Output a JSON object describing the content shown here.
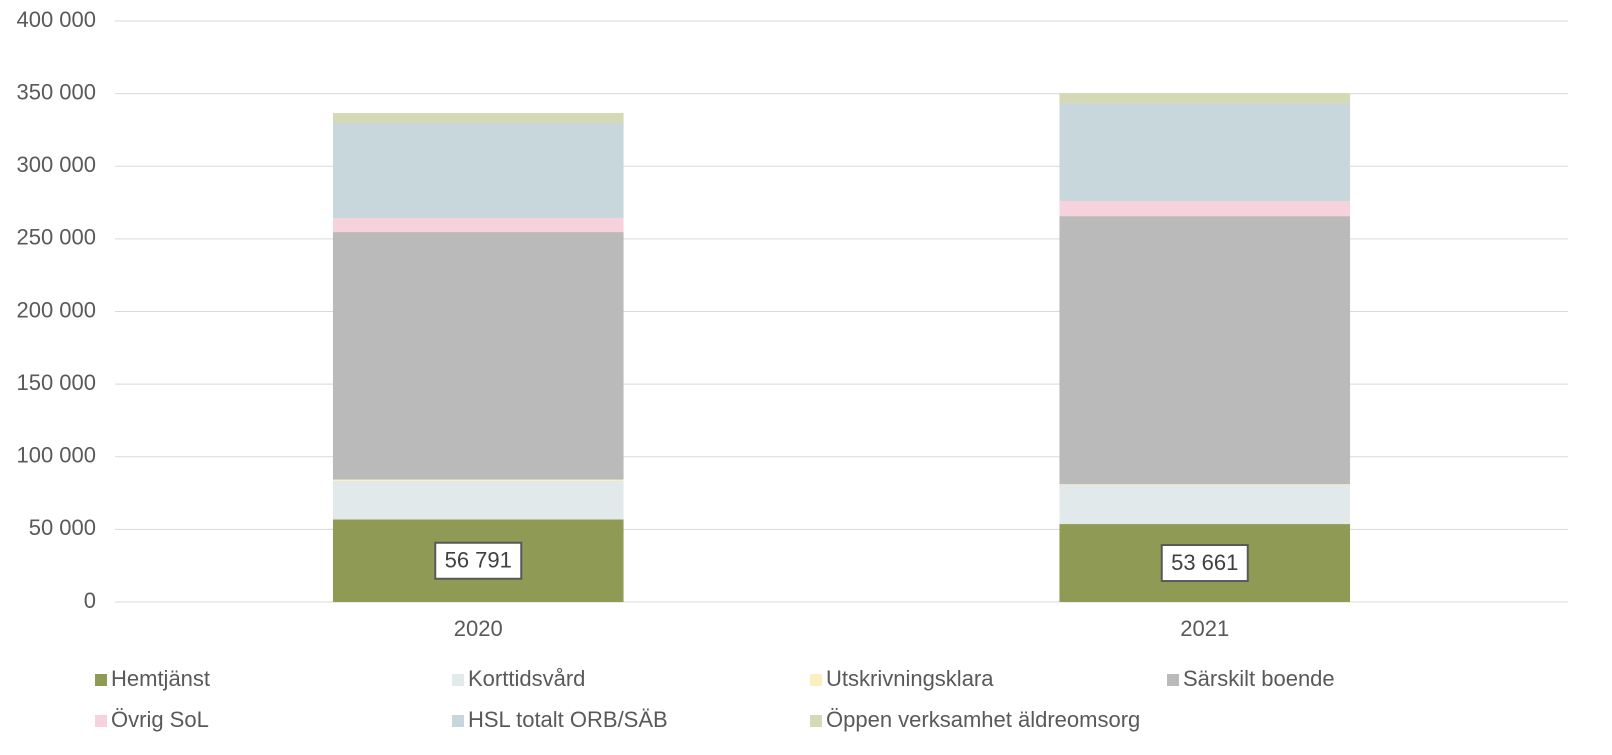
{
  "chart_data": {
    "type": "stacked_bar",
    "categories": [
      "2020",
      "2021"
    ],
    "series": [
      {
        "name": "Hemtjänst",
        "color": "#8f9a55",
        "values": [
          56791,
          53661
        ],
        "value_labels": [
          "56 791",
          "53 661"
        ]
      },
      {
        "name": "Korttidsvård",
        "color": "#e2e9eb",
        "values": [
          26500,
          26900
        ]
      },
      {
        "name": "Utskrivningsklara",
        "color": "#fdf0c0",
        "values": [
          1000,
          500
        ]
      },
      {
        "name": "Särskilt boende",
        "color": "#bababa",
        "values": [
          170400,
          184600
        ]
      },
      {
        "name": "Övrig SoL",
        "color": "#f6d2dc",
        "values": [
          9700,
          10400
        ]
      },
      {
        "name": "HSL totalt ORB/SÄB",
        "color": "#c8d7dc",
        "values": [
          65400,
          67400
        ]
      },
      {
        "name": "Öppen verksamhet äldreomsorg",
        "color": "#d6d9b5",
        "values": [
          6900,
          6900
        ]
      }
    ],
    "ylim": [
      0,
      400000
    ],
    "yticks": [
      0,
      {
        "value": 50000,
        "label": "50 000"
      },
      {
        "value": 100000,
        "label": "100 000"
      },
      {
        "value": 150000,
        "label": "150 000"
      },
      {
        "value": 200000,
        "label": "200 000"
      },
      {
        "value": 250000,
        "label": "250 000"
      },
      {
        "value": 300000,
        "label": "300 000"
      },
      {
        "value": 350000,
        "label": "350 000"
      },
      {
        "value": 400000,
        "label": "400 000"
      }
    ],
    "grid": true,
    "legend": "bottom"
  }
}
